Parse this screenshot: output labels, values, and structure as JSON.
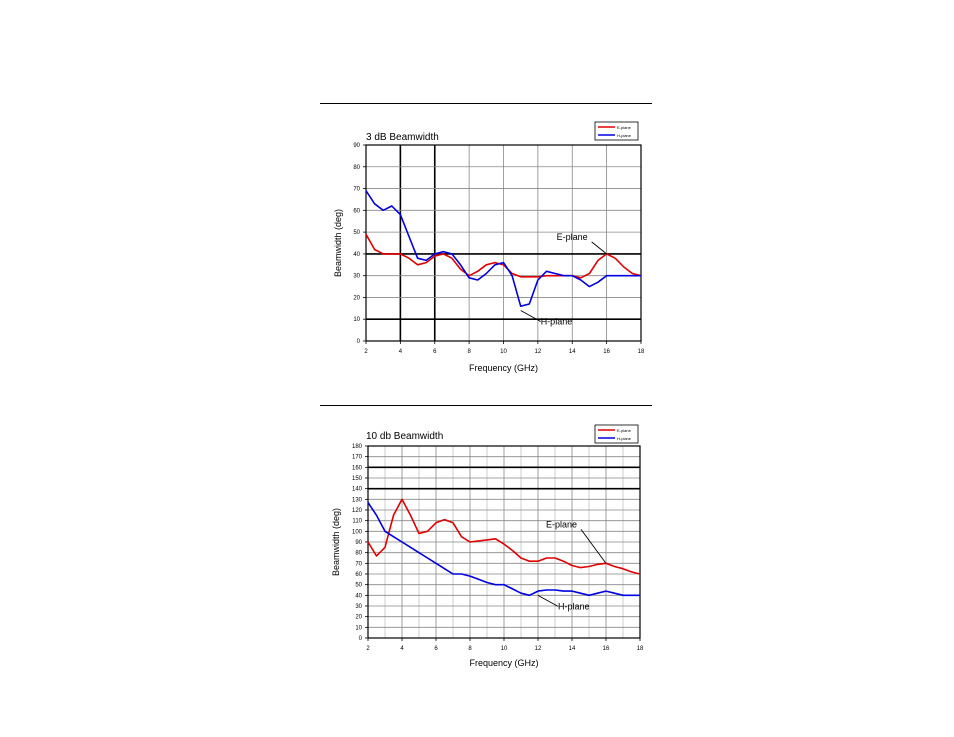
{
  "chart_data": [
    {
      "type": "line",
      "title": "3 dB Beamwidth",
      "xlabel": "Frequency (GHz)",
      "ylabel": "Beamwidth (deg)",
      "xlim": [
        2,
        18
      ],
      "ylim": [
        0,
        90
      ],
      "x_ticks": [
        2,
        4,
        6,
        8,
        10,
        12,
        14,
        16,
        18
      ],
      "y_ticks": [
        0,
        10,
        20,
        30,
        40,
        50,
        60,
        70,
        80,
        90
      ],
      "legend": {
        "placement": "top-right",
        "entries": [
          "E-plane",
          "H-plane"
        ]
      },
      "grid": true,
      "annotations": [
        {
          "text": "E-plane",
          "x": 16,
          "y": 40
        },
        {
          "text": "H-plane",
          "x": 11,
          "y": 14
        }
      ],
      "series": [
        {
          "name": "E-plane",
          "color": "#e00000",
          "x": [
            2,
            2.5,
            3,
            3.5,
            4,
            4.5,
            5,
            5.5,
            6,
            6.5,
            7,
            7.5,
            8,
            8.5,
            9,
            9.5,
            10,
            10.5,
            11,
            11.5,
            12,
            12.5,
            13,
            13.5,
            14,
            14.5,
            15,
            15.5,
            16,
            16.5,
            17,
            17.5,
            18
          ],
          "y": [
            49,
            42,
            40,
            40,
            40,
            38,
            35,
            36,
            39,
            40,
            38,
            33,
            30,
            32,
            35,
            36,
            35,
            31,
            29.5,
            29.5,
            29.5,
            30,
            30,
            30,
            30,
            29,
            31,
            37,
            40,
            38,
            34,
            31,
            30
          ]
        },
        {
          "name": "H-plane",
          "color": "#0000e0",
          "x": [
            2,
            2.5,
            3,
            3.5,
            4,
            4.5,
            5,
            5.5,
            6,
            6.5,
            7,
            7.5,
            8,
            8.5,
            9,
            9.5,
            10,
            10.5,
            11,
            11.5,
            12,
            12.5,
            13,
            13.5,
            14,
            14.5,
            15,
            15.5,
            16,
            16.5,
            17,
            17.5,
            18
          ],
          "y": [
            69,
            63,
            60,
            62,
            58,
            48,
            38,
            37,
            40,
            41,
            40,
            35,
            29,
            28,
            31,
            35,
            36,
            30,
            16,
            17,
            28,
            32,
            31,
            30,
            30,
            28,
            25,
            27,
            30,
            30,
            30,
            30,
            30
          ]
        }
      ]
    },
    {
      "type": "line",
      "title": "10 db Beamwidth",
      "xlabel": "Frequency (GHz)",
      "ylabel": "Beamwidth (deg)",
      "xlim": [
        2,
        18
      ],
      "ylim": [
        0,
        180
      ],
      "x_ticks": [
        2,
        4,
        6,
        8,
        10,
        12,
        14,
        16,
        18
      ],
      "y_ticks": [
        0,
        10,
        20,
        30,
        40,
        50,
        60,
        70,
        80,
        90,
        100,
        110,
        120,
        130,
        140,
        150,
        160,
        170,
        180
      ],
      "legend": {
        "placement": "top-right",
        "entries": [
          "E-plane",
          "H-plane"
        ]
      },
      "grid": true,
      "annotations": [
        {
          "text": "E-plane",
          "x": 16,
          "y": 70
        },
        {
          "text": "H-plane",
          "x": 12,
          "y": 40
        }
      ],
      "series": [
        {
          "name": "E-plane",
          "color": "#e00000",
          "x": [
            2,
            2.5,
            3,
            3.5,
            4,
            4.5,
            5,
            5.5,
            6,
            6.5,
            7,
            7.5,
            8,
            8.5,
            9,
            9.5,
            10,
            10.5,
            11,
            11.5,
            12,
            12.5,
            13,
            13.5,
            14,
            14.5,
            15,
            15.5,
            16,
            16.5,
            17,
            17.5,
            18
          ],
          "y": [
            90,
            77,
            85,
            115,
            130,
            115,
            98,
            100,
            108,
            111,
            108,
            95,
            90,
            91,
            92,
            93,
            88,
            82,
            75,
            72,
            72,
            75,
            75,
            72,
            68,
            66,
            67,
            69,
            70,
            67,
            65,
            62,
            60
          ]
        },
        {
          "name": "H-plane",
          "color": "#0000e0",
          "x": [
            2,
            2.5,
            3,
            3.5,
            4,
            4.5,
            5,
            5.5,
            6,
            6.5,
            7,
            7.5,
            8,
            8.5,
            9,
            9.5,
            10,
            10.5,
            11,
            11.5,
            12,
            12.5,
            13,
            13.5,
            14,
            14.5,
            15,
            15.5,
            16,
            16.5,
            17,
            17.5,
            18
          ],
          "y": [
            127,
            115,
            100,
            95,
            90,
            85,
            80,
            75,
            70,
            65,
            60,
            60,
            58,
            55,
            52,
            50,
            50,
            46,
            42,
            40,
            44,
            45,
            45,
            44,
            44,
            42,
            40,
            42,
            44,
            42,
            40,
            40,
            40
          ]
        }
      ]
    }
  ]
}
